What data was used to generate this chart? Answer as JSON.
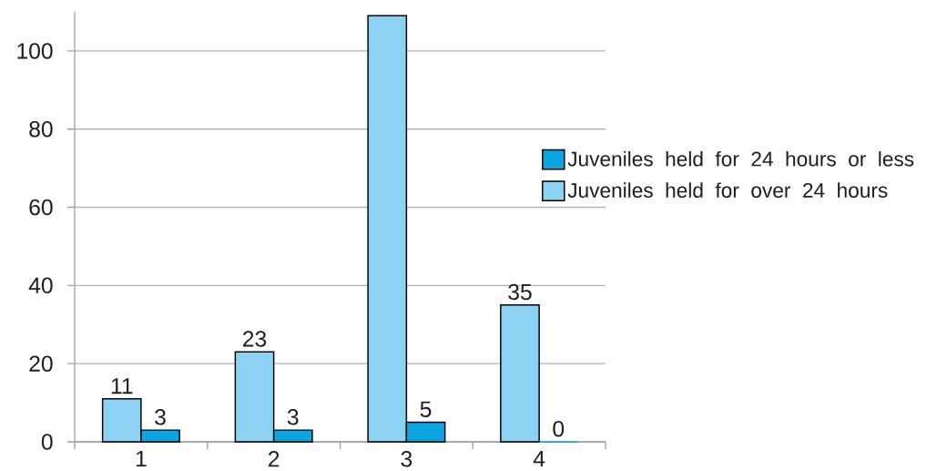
{
  "chart_data": {
    "type": "bar",
    "categories": [
      "1",
      "2",
      "3",
      "4"
    ],
    "series": [
      {
        "name": "Juveniles held for over 24 hours",
        "color": "#8ed2f3",
        "values": [
          11,
          23,
          109,
          35
        ],
        "value_labels": [
          "11",
          "23",
          null,
          "35"
        ]
      },
      {
        "name": "Juveniles held for 24 hours or less",
        "color": "#0ba5e0",
        "values": [
          3,
          3,
          5,
          0
        ],
        "value_labels": [
          "3",
          "3",
          "5",
          "0"
        ]
      }
    ],
    "ylim": [
      0,
      110
    ],
    "yticks": [
      0,
      20,
      40,
      60,
      80,
      100
    ],
    "grid": "y",
    "legend": "right"
  }
}
